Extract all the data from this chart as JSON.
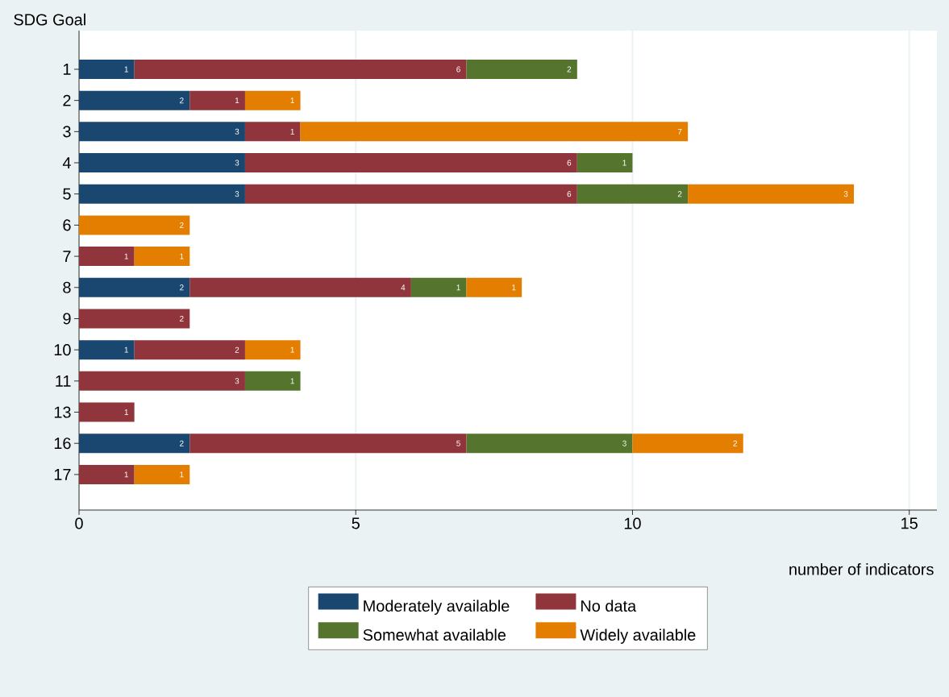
{
  "chart_data": {
    "type": "bar",
    "orientation": "horizontal",
    "stacked": true,
    "ylabel": "SDG Goal",
    "xlabel": "number of indicators",
    "categories": [
      "1",
      "2",
      "3",
      "4",
      "5",
      "6",
      "7",
      "8",
      "9",
      "10",
      "11",
      "13",
      "16",
      "17"
    ],
    "series": [
      {
        "name": "Moderately available",
        "color": "#1a476f",
        "values": [
          1,
          2,
          3,
          3,
          3,
          null,
          null,
          2,
          null,
          1,
          null,
          null,
          2,
          null
        ]
      },
      {
        "name": "No data",
        "color": "#90353b",
        "values": [
          6,
          1,
          1,
          6,
          6,
          null,
          1,
          4,
          2,
          2,
          3,
          1,
          5,
          1
        ]
      },
      {
        "name": "Somewhat available",
        "color": "#55752f",
        "values": [
          2,
          null,
          null,
          1,
          2,
          null,
          null,
          1,
          null,
          null,
          1,
          null,
          3,
          null
        ]
      },
      {
        "name": "Widely available",
        "color": "#e37e00",
        "values": [
          null,
          1,
          7,
          null,
          3,
          2,
          1,
          1,
          null,
          1,
          null,
          null,
          2,
          1
        ]
      }
    ],
    "xlim": [
      0,
      15.5
    ],
    "xticks": [
      0,
      5,
      10,
      15
    ],
    "grid": "x",
    "legend": "bottom",
    "data_labels": true
  }
}
